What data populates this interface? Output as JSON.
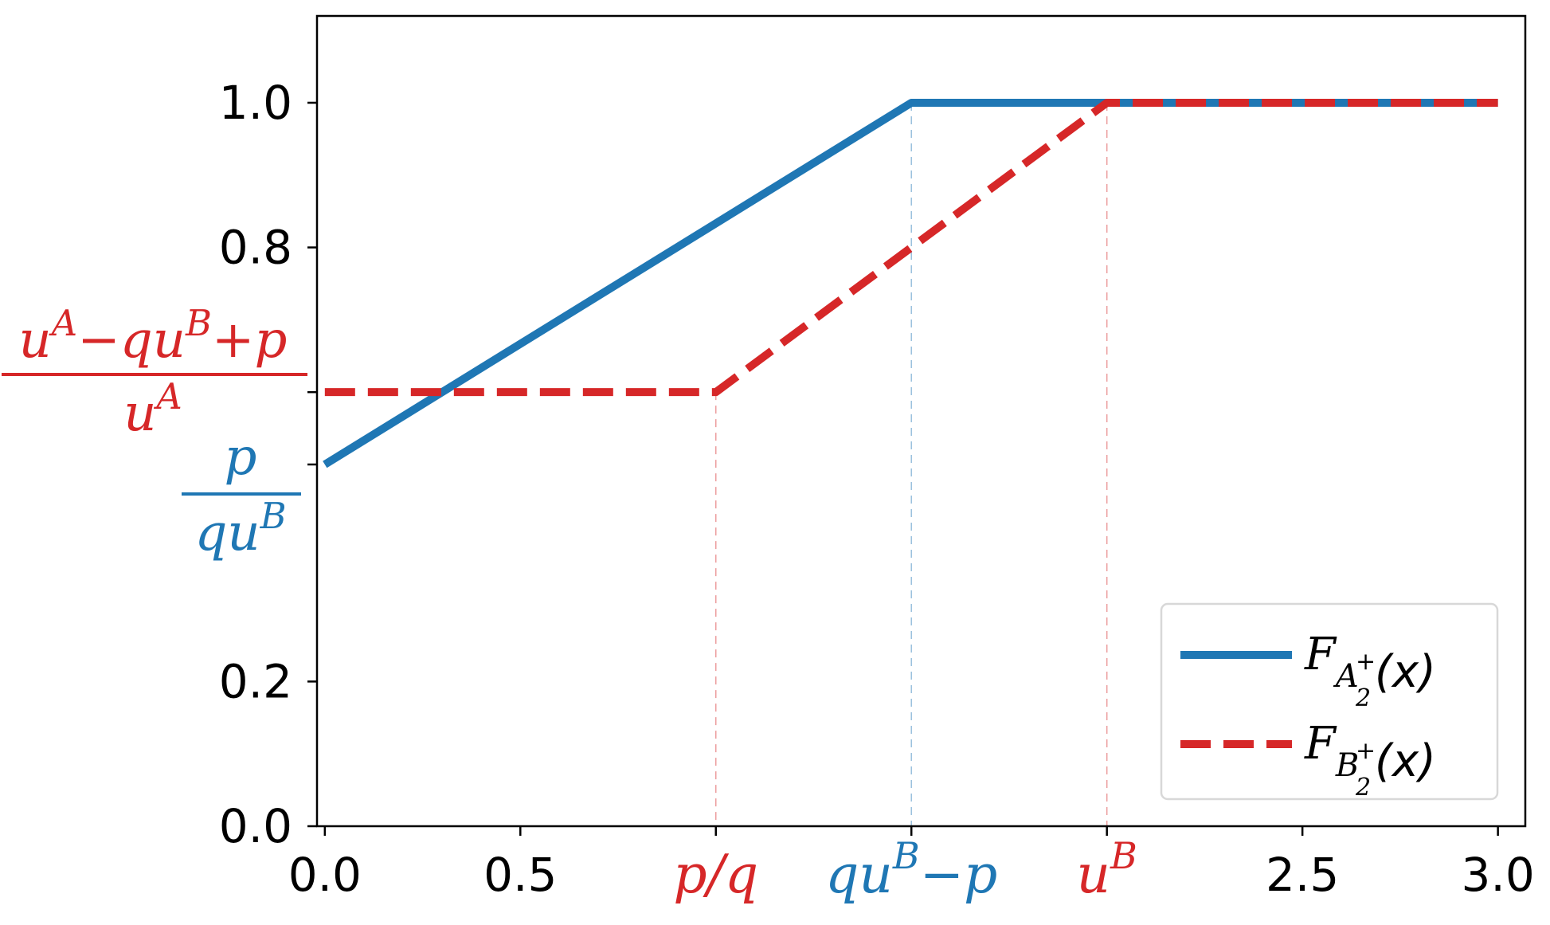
{
  "chart_data": {
    "type": "line",
    "xlim": [
      -0.02,
      3.07
    ],
    "ylim": [
      0.0,
      1.12
    ],
    "x_ticks": [
      {
        "value": 0.0,
        "label": "0.0",
        "kind": "plain"
      },
      {
        "value": 0.5,
        "label": "0.5",
        "kind": "plain"
      },
      {
        "value": 1.0,
        "label": "p/q",
        "kind": "math",
        "color": "#d62728"
      },
      {
        "value": 1.5,
        "label": "qu",
        "sup": "B",
        "tail": "−p",
        "kind": "math",
        "color": "#1f77b4"
      },
      {
        "value": 2.0,
        "label": "u",
        "sup": "B",
        "kind": "math",
        "color": "#d62728"
      },
      {
        "value": 2.5,
        "label": "2.5",
        "kind": "plain"
      },
      {
        "value": 3.0,
        "label": "3.0",
        "kind": "plain"
      }
    ],
    "y_ticks": [
      {
        "value": 0.0,
        "label": "0.0"
      },
      {
        "value": 0.2,
        "label": "0.2"
      },
      {
        "value": 0.8,
        "label": "0.8"
      },
      {
        "value": 1.0,
        "label": "1.0"
      }
    ],
    "y_math_labels": [
      {
        "value": 0.6,
        "numerator": "u^A−qu^B+p",
        "denominator": "u^A",
        "color": "#d62728"
      },
      {
        "value": 0.5,
        "numerator": "p",
        "denominator": "qu^B",
        "color": "#1f77b4"
      }
    ],
    "series": [
      {
        "name": "F_{A_2^+}(x)",
        "color": "#1f77b4",
        "style": "solid",
        "x": [
          0.0,
          1.5,
          3.0
        ],
        "y": [
          0.5,
          1.0,
          1.0
        ]
      },
      {
        "name": "F_{B_2^+}(x)",
        "color": "#d62728",
        "style": "dashed",
        "x": [
          0.0,
          1.0,
          2.0,
          3.0
        ],
        "y": [
          0.6,
          0.6,
          1.0,
          1.0
        ]
      }
    ],
    "reference_lines": [
      {
        "x": 1.0,
        "y_top": 0.6,
        "color": "#d62728"
      },
      {
        "x": 1.5,
        "y_top": 1.0,
        "color": "#1f77b4"
      },
      {
        "x": 2.0,
        "y_top": 1.0,
        "color": "#d62728"
      }
    ],
    "legend": {
      "placement": "bottom-right",
      "entries": [
        {
          "base": "F",
          "sub": "A",
          "subsub": "2",
          "subsup": "+",
          "arg": "(x)",
          "color": "#1f77b4",
          "style": "solid"
        },
        {
          "base": "F",
          "sub": "B",
          "subsub": "2",
          "subsup": "+",
          "arg": "(x)",
          "color": "#d62728",
          "style": "dashed"
        }
      ]
    },
    "grid": false
  }
}
